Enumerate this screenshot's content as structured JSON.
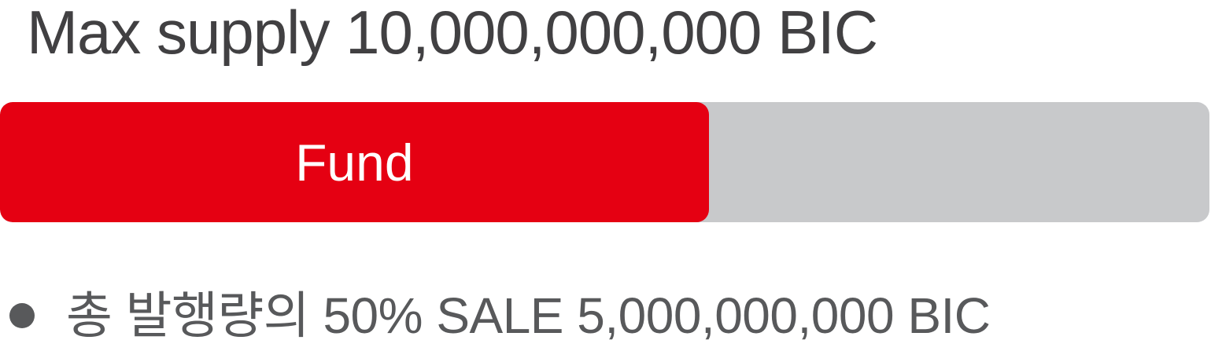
{
  "title": "Max supply 10,000,000,000 BIC",
  "bar": {
    "label": "Fund",
    "fill_fraction": 0.586,
    "fill_color": "#e50012",
    "track_color": "#c8c9cb"
  },
  "note": {
    "bullet_color": "#58595b",
    "text": "총 발행량의 50% SALE 5,000,000,000 BIC"
  }
}
